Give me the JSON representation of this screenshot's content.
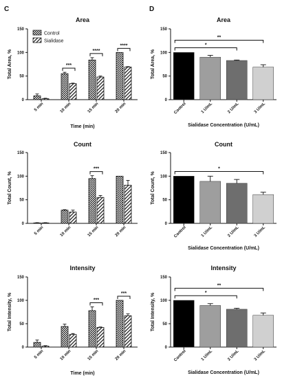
{
  "figure": {
    "panel_labels": [
      "C",
      "D"
    ]
  },
  "chart_data": [
    {
      "panel": "C",
      "type": "bar",
      "title": "Area",
      "xlabel": "Time (min)",
      "ylabel": "Total Area, %",
      "ylim": [
        0,
        150
      ],
      "yticks": [
        0,
        50,
        100,
        150
      ],
      "categories": [
        "5 min",
        "10 min",
        "15 min",
        "20 min"
      ],
      "legend": {
        "position": "top-left"
      },
      "series": [
        {
          "name": "Control",
          "values": [
            8,
            55,
            84,
            100
          ],
          "errors": [
            4,
            3,
            5,
            0
          ],
          "pattern": "crosshatch"
        },
        {
          "name": "Sialidase",
          "values": [
            2,
            34,
            48,
            69
          ],
          "errors": [
            1,
            1,
            2,
            1
          ],
          "pattern": "diagonal"
        }
      ],
      "annotations": [
        {
          "category": "10 min",
          "text": "***"
        },
        {
          "category": "15 min",
          "text": "****"
        },
        {
          "category": "20 min",
          "text": "****"
        }
      ]
    },
    {
      "panel": "C",
      "type": "bar",
      "title": "Count",
      "xlabel": "",
      "ylabel": "Total Count, %",
      "ylim": [
        0,
        150
      ],
      "yticks": [
        0,
        50,
        100,
        150
      ],
      "categories": [
        "5 min",
        "10 min",
        "15 min",
        "20 min"
      ],
      "series": [
        {
          "name": "Control",
          "values": [
            1,
            28,
            95,
            100
          ],
          "errors": [
            0.5,
            1,
            6,
            0
          ],
          "pattern": "crosshatch"
        },
        {
          "name": "Sialidase",
          "values": [
            1,
            24,
            55,
            81
          ],
          "errors": [
            0.5,
            4,
            4,
            10
          ],
          "pattern": "diagonal"
        }
      ],
      "annotations": [
        {
          "category": "15 min",
          "text": "***"
        }
      ]
    },
    {
      "panel": "C",
      "type": "bar",
      "title": "Intensity",
      "xlabel": "Time (min)",
      "ylabel": "Total Intensity, %",
      "ylim": [
        0,
        150
      ],
      "yticks": [
        0,
        50,
        100,
        150
      ],
      "categories": [
        "5 min",
        "10 min",
        "15 min",
        "20 min"
      ],
      "series": [
        {
          "name": "Control",
          "values": [
            10,
            44,
            78,
            100
          ],
          "errors": [
            5,
            5,
            8,
            0
          ],
          "pattern": "crosshatch"
        },
        {
          "name": "Sialidase",
          "values": [
            2,
            27,
            42,
            67
          ],
          "errors": [
            1,
            2,
            1,
            4
          ],
          "pattern": "diagonal"
        }
      ],
      "annotations": [
        {
          "category": "15 min",
          "text": "***"
        },
        {
          "category": "20 min",
          "text": "***"
        }
      ]
    },
    {
      "panel": "D",
      "type": "bar",
      "title": "Area",
      "xlabel": "Sialidase Concentration (U/mL)",
      "ylabel": "Total Area, %",
      "ylim": [
        0,
        150
      ],
      "yticks": [
        0,
        50,
        100,
        150
      ],
      "categories": [
        "Control",
        "1 U/mL",
        "2 U/mL",
        "3 U/mL"
      ],
      "values": [
        100,
        90,
        83,
        69
      ],
      "errors": [
        0,
        4,
        1,
        5
      ],
      "colors": [
        "#000000",
        "#9e9e9e",
        "#6e6e6e",
        "#d0d0d0"
      ],
      "comparisons": [
        {
          "from": "Control",
          "to": "3 U/mL",
          "text": "**",
          "level": 2
        },
        {
          "from": "Control",
          "to": "2 U/mL",
          "text": "*",
          "level": 1
        }
      ]
    },
    {
      "panel": "D",
      "type": "bar",
      "title": "Count",
      "xlabel": "Sialidase Concentration (U/mL)",
      "ylabel": "Total Count, %",
      "ylim": [
        0,
        150
      ],
      "yticks": [
        0,
        50,
        100,
        150
      ],
      "categories": [
        "Control",
        "1 U/mL",
        "2 U/mL",
        "3 U/mL"
      ],
      "values": [
        100,
        89,
        85,
        61
      ],
      "errors": [
        0,
        11,
        8,
        5
      ],
      "colors": [
        "#000000",
        "#9e9e9e",
        "#6e6e6e",
        "#d0d0d0"
      ],
      "comparisons": [
        {
          "from": "Control",
          "to": "3 U/mL",
          "text": "*",
          "level": 1
        }
      ]
    },
    {
      "panel": "D",
      "type": "bar",
      "title": "Intensity",
      "xlabel": "Sialidase Concentration (U/mL)",
      "ylabel": "Total Intensity, %",
      "ylim": [
        0,
        150
      ],
      "yticks": [
        0,
        50,
        100,
        150
      ],
      "categories": [
        "Control",
        "1 U/mL",
        "2 U/mL",
        "3 U/mL"
      ],
      "values": [
        100,
        89,
        81,
        68
      ],
      "errors": [
        0,
        4,
        2,
        5
      ],
      "colors": [
        "#000000",
        "#9e9e9e",
        "#6e6e6e",
        "#d0d0d0"
      ],
      "comparisons": [
        {
          "from": "Control",
          "to": "3 U/mL",
          "text": "**",
          "level": 2
        },
        {
          "from": "Control",
          "to": "2 U/mL",
          "text": "*",
          "level": 1
        }
      ]
    }
  ]
}
